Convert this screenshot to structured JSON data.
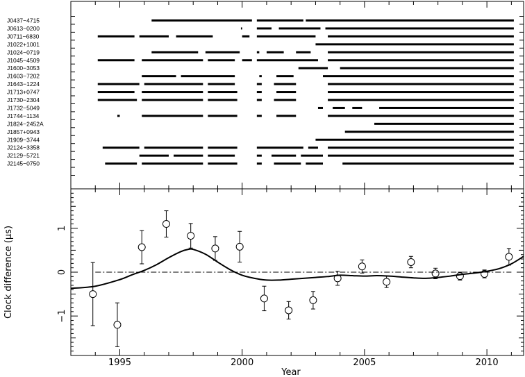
{
  "chart_data": [
    {
      "type": "scatter",
      "panel": "top",
      "x_range": [
        1993,
        2011.5
      ],
      "grid": false,
      "pulsars": [
        {
          "name": "J0437−4715",
          "segments": [
            [
              1996.3,
              2000.4
            ],
            [
              2000.6,
              2002.5
            ],
            [
              2002.6,
              2011.1
            ]
          ]
        },
        {
          "name": "J0613−0200",
          "segments": [
            [
              1999.95,
              2000.0
            ],
            [
              2000.6,
              2001.2
            ],
            [
              2001.5,
              2003.2
            ],
            [
              2003.4,
              2011.1
            ]
          ]
        },
        {
          "name": "J0711−6830",
          "segments": [
            [
              1994.1,
              1995.6
            ],
            [
              1995.8,
              1997.0
            ],
            [
              1997.3,
              1998.8
            ],
            [
              2000.0,
              2000.3
            ],
            [
              2000.6,
              2003.0
            ],
            [
              2003.5,
              2011.1
            ]
          ]
        },
        {
          "name": "J1022+1001",
          "segments": [
            [
              2003.0,
              2011.1
            ]
          ]
        },
        {
          "name": "J1024−0719",
          "segments": [
            [
              1996.3,
              1998.2
            ],
            [
              1998.5,
              1999.9
            ],
            [
              2000.6,
              2000.7
            ],
            [
              2001.0,
              2001.7
            ],
            [
              2002.2,
              2002.8
            ],
            [
              2003.5,
              2011.1
            ]
          ]
        },
        {
          "name": "J1045−4509",
          "segments": [
            [
              1994.1,
              1995.6
            ],
            [
              1995.9,
              1998.4
            ],
            [
              1998.6,
              1999.7
            ],
            [
              2000.0,
              2000.4
            ],
            [
              2000.6,
              2003.1
            ],
            [
              2003.5,
              2011.1
            ]
          ]
        },
        {
          "name": "J1600−3053",
          "segments": [
            [
              2002.3,
              2003.5
            ],
            [
              2004.0,
              2011.1
            ]
          ]
        },
        {
          "name": "J1603−7202",
          "segments": [
            [
              1995.9,
              1997.3
            ],
            [
              1997.5,
              1999.7
            ],
            [
              2000.7,
              2000.8
            ],
            [
              2001.4,
              2002.1
            ],
            [
              2003.3,
              2011.1
            ]
          ]
        },
        {
          "name": "J1643−1224",
          "segments": [
            [
              1994.1,
              1995.8
            ],
            [
              1996.0,
              1998.4
            ],
            [
              1998.6,
              1999.7
            ],
            [
              2000.6,
              2000.8
            ],
            [
              2001.3,
              2002.2
            ],
            [
              2003.5,
              2011.1
            ]
          ]
        },
        {
          "name": "J1713+0747",
          "segments": [
            [
              1994.1,
              1995.6
            ],
            [
              1995.9,
              1998.4
            ],
            [
              1998.6,
              1999.8
            ],
            [
              2000.6,
              2000.8
            ],
            [
              2001.4,
              2002.2
            ],
            [
              2003.5,
              2011.1
            ]
          ]
        },
        {
          "name": "J1730−2304",
          "segments": [
            [
              1994.1,
              1995.7
            ],
            [
              1995.9,
              1998.4
            ],
            [
              1998.6,
              1999.8
            ],
            [
              2000.6,
              2000.8
            ],
            [
              2001.3,
              2002.2
            ],
            [
              2003.5,
              2011.1
            ]
          ]
        },
        {
          "name": "J1732−5049",
          "segments": [
            [
              2003.1,
              2003.3
            ],
            [
              2003.7,
              2004.2
            ],
            [
              2004.5,
              2004.9
            ],
            [
              2005.6,
              2011.1
            ]
          ]
        },
        {
          "name": "J1744−1134",
          "segments": [
            [
              1994.9,
              1995.0
            ],
            [
              1995.9,
              1998.4
            ],
            [
              1998.6,
              1999.8
            ],
            [
              2000.6,
              2000.8
            ],
            [
              2001.4,
              2002.2
            ],
            [
              2003.5,
              2011.1
            ]
          ]
        },
        {
          "name": "J1824−2452A",
          "segments": [
            [
              2005.4,
              2011.1
            ]
          ]
        },
        {
          "name": "J1857+0943",
          "segments": [
            [
              2004.2,
              2011.1
            ]
          ]
        },
        {
          "name": "J1909−3744",
          "segments": [
            [
              2003.0,
              2011.1
            ]
          ]
        },
        {
          "name": "J2124−3358",
          "segments": [
            [
              1994.3,
              1995.8
            ],
            [
              1996.0,
              1998.4
            ],
            [
              1998.6,
              1999.8
            ],
            [
              2000.6,
              2002.5
            ],
            [
              2002.7,
              2003.1
            ],
            [
              2003.5,
              2011.1
            ]
          ]
        },
        {
          "name": "J2129−5721",
          "segments": [
            [
              1995.8,
              1997.0
            ],
            [
              1997.2,
              1998.4
            ],
            [
              1998.6,
              1999.7
            ],
            [
              2000.6,
              2000.8
            ],
            [
              2001.2,
              2002.2
            ],
            [
              2002.4,
              2003.3
            ],
            [
              2003.5,
              2011.1
            ]
          ]
        },
        {
          "name": "J2145−0750",
          "segments": [
            [
              1994.4,
              1995.7
            ],
            [
              1995.9,
              1998.4
            ],
            [
              1998.6,
              1999.8
            ],
            [
              2000.6,
              2000.8
            ],
            [
              2001.3,
              2002.4
            ],
            [
              2002.6,
              2003.3
            ],
            [
              2004.1,
              2011.1
            ]
          ]
        }
      ]
    },
    {
      "type": "scatter",
      "panel": "bottom",
      "xlabel": "Year",
      "ylabel": "Clock difference  (µs)",
      "xlim": [
        1993,
        2011.5
      ],
      "ylim": [
        -1.9,
        1.9
      ],
      "xticks": [
        1995,
        2000,
        2005,
        2010
      ],
      "yticks": [
        -1,
        0,
        1
      ],
      "grid": false,
      "points": [
        {
          "x": 1993.9,
          "y": -0.5,
          "err": 0.72
        },
        {
          "x": 1994.9,
          "y": -1.2,
          "err": 0.5
        },
        {
          "x": 1995.9,
          "y": 0.57,
          "err": 0.38
        },
        {
          "x": 1996.9,
          "y": 1.1,
          "err": 0.3
        },
        {
          "x": 1997.9,
          "y": 0.83,
          "err": 0.28
        },
        {
          "x": 1998.9,
          "y": 0.54,
          "err": 0.27
        },
        {
          "x": 1999.9,
          "y": 0.58,
          "err": 0.35
        },
        {
          "x": 2000.9,
          "y": -0.6,
          "err": 0.28
        },
        {
          "x": 2001.9,
          "y": -0.87,
          "err": 0.2
        },
        {
          "x": 2002.9,
          "y": -0.64,
          "err": 0.2
        },
        {
          "x": 2003.9,
          "y": -0.14,
          "err": 0.16
        },
        {
          "x": 2004.9,
          "y": 0.13,
          "err": 0.15
        },
        {
          "x": 2005.9,
          "y": -0.22,
          "err": 0.13
        },
        {
          "x": 2006.9,
          "y": 0.23,
          "err": 0.13
        },
        {
          "x": 2007.9,
          "y": -0.03,
          "err": 0.12
        },
        {
          "x": 2008.9,
          "y": -0.09,
          "err": 0.09
        },
        {
          "x": 2009.9,
          "y": -0.04,
          "err": 0.09
        },
        {
          "x": 2010.9,
          "y": 0.35,
          "err": 0.19
        }
      ],
      "curve": [
        [
          1993.0,
          -0.37
        ],
        [
          1994.0,
          -0.32
        ],
        [
          1995.0,
          -0.17
        ],
        [
          1995.5,
          -0.06
        ],
        [
          1996.0,
          0.04
        ],
        [
          1996.5,
          0.17
        ],
        [
          1997.0,
          0.33
        ],
        [
          1997.5,
          0.47
        ],
        [
          1997.8,
          0.52
        ],
        [
          1998.0,
          0.52
        ],
        [
          1998.5,
          0.41
        ],
        [
          1999.0,
          0.23
        ],
        [
          1999.5,
          0.06
        ],
        [
          2000.0,
          -0.07
        ],
        [
          2000.5,
          -0.14
        ],
        [
          2001.0,
          -0.18
        ],
        [
          2001.5,
          -0.18
        ],
        [
          2002.0,
          -0.16
        ],
        [
          2002.5,
          -0.14
        ],
        [
          2003.0,
          -0.12
        ],
        [
          2003.5,
          -0.1
        ],
        [
          2004.0,
          -0.07
        ],
        [
          2004.5,
          -0.08
        ],
        [
          2005.0,
          -0.09
        ],
        [
          2005.5,
          -0.08
        ],
        [
          2006.0,
          -0.09
        ],
        [
          2006.5,
          -0.11
        ],
        [
          2007.0,
          -0.13
        ],
        [
          2007.5,
          -0.14
        ],
        [
          2008.0,
          -0.12
        ],
        [
          2008.5,
          -0.09
        ],
        [
          2009.0,
          -0.05
        ],
        [
          2009.5,
          -0.02
        ],
        [
          2010.0,
          0.02
        ],
        [
          2010.5,
          0.08
        ],
        [
          2011.0,
          0.19
        ],
        [
          2011.5,
          0.36
        ]
      ],
      "reference_line": {
        "y": 0,
        "style": "dash-dot"
      }
    }
  ]
}
